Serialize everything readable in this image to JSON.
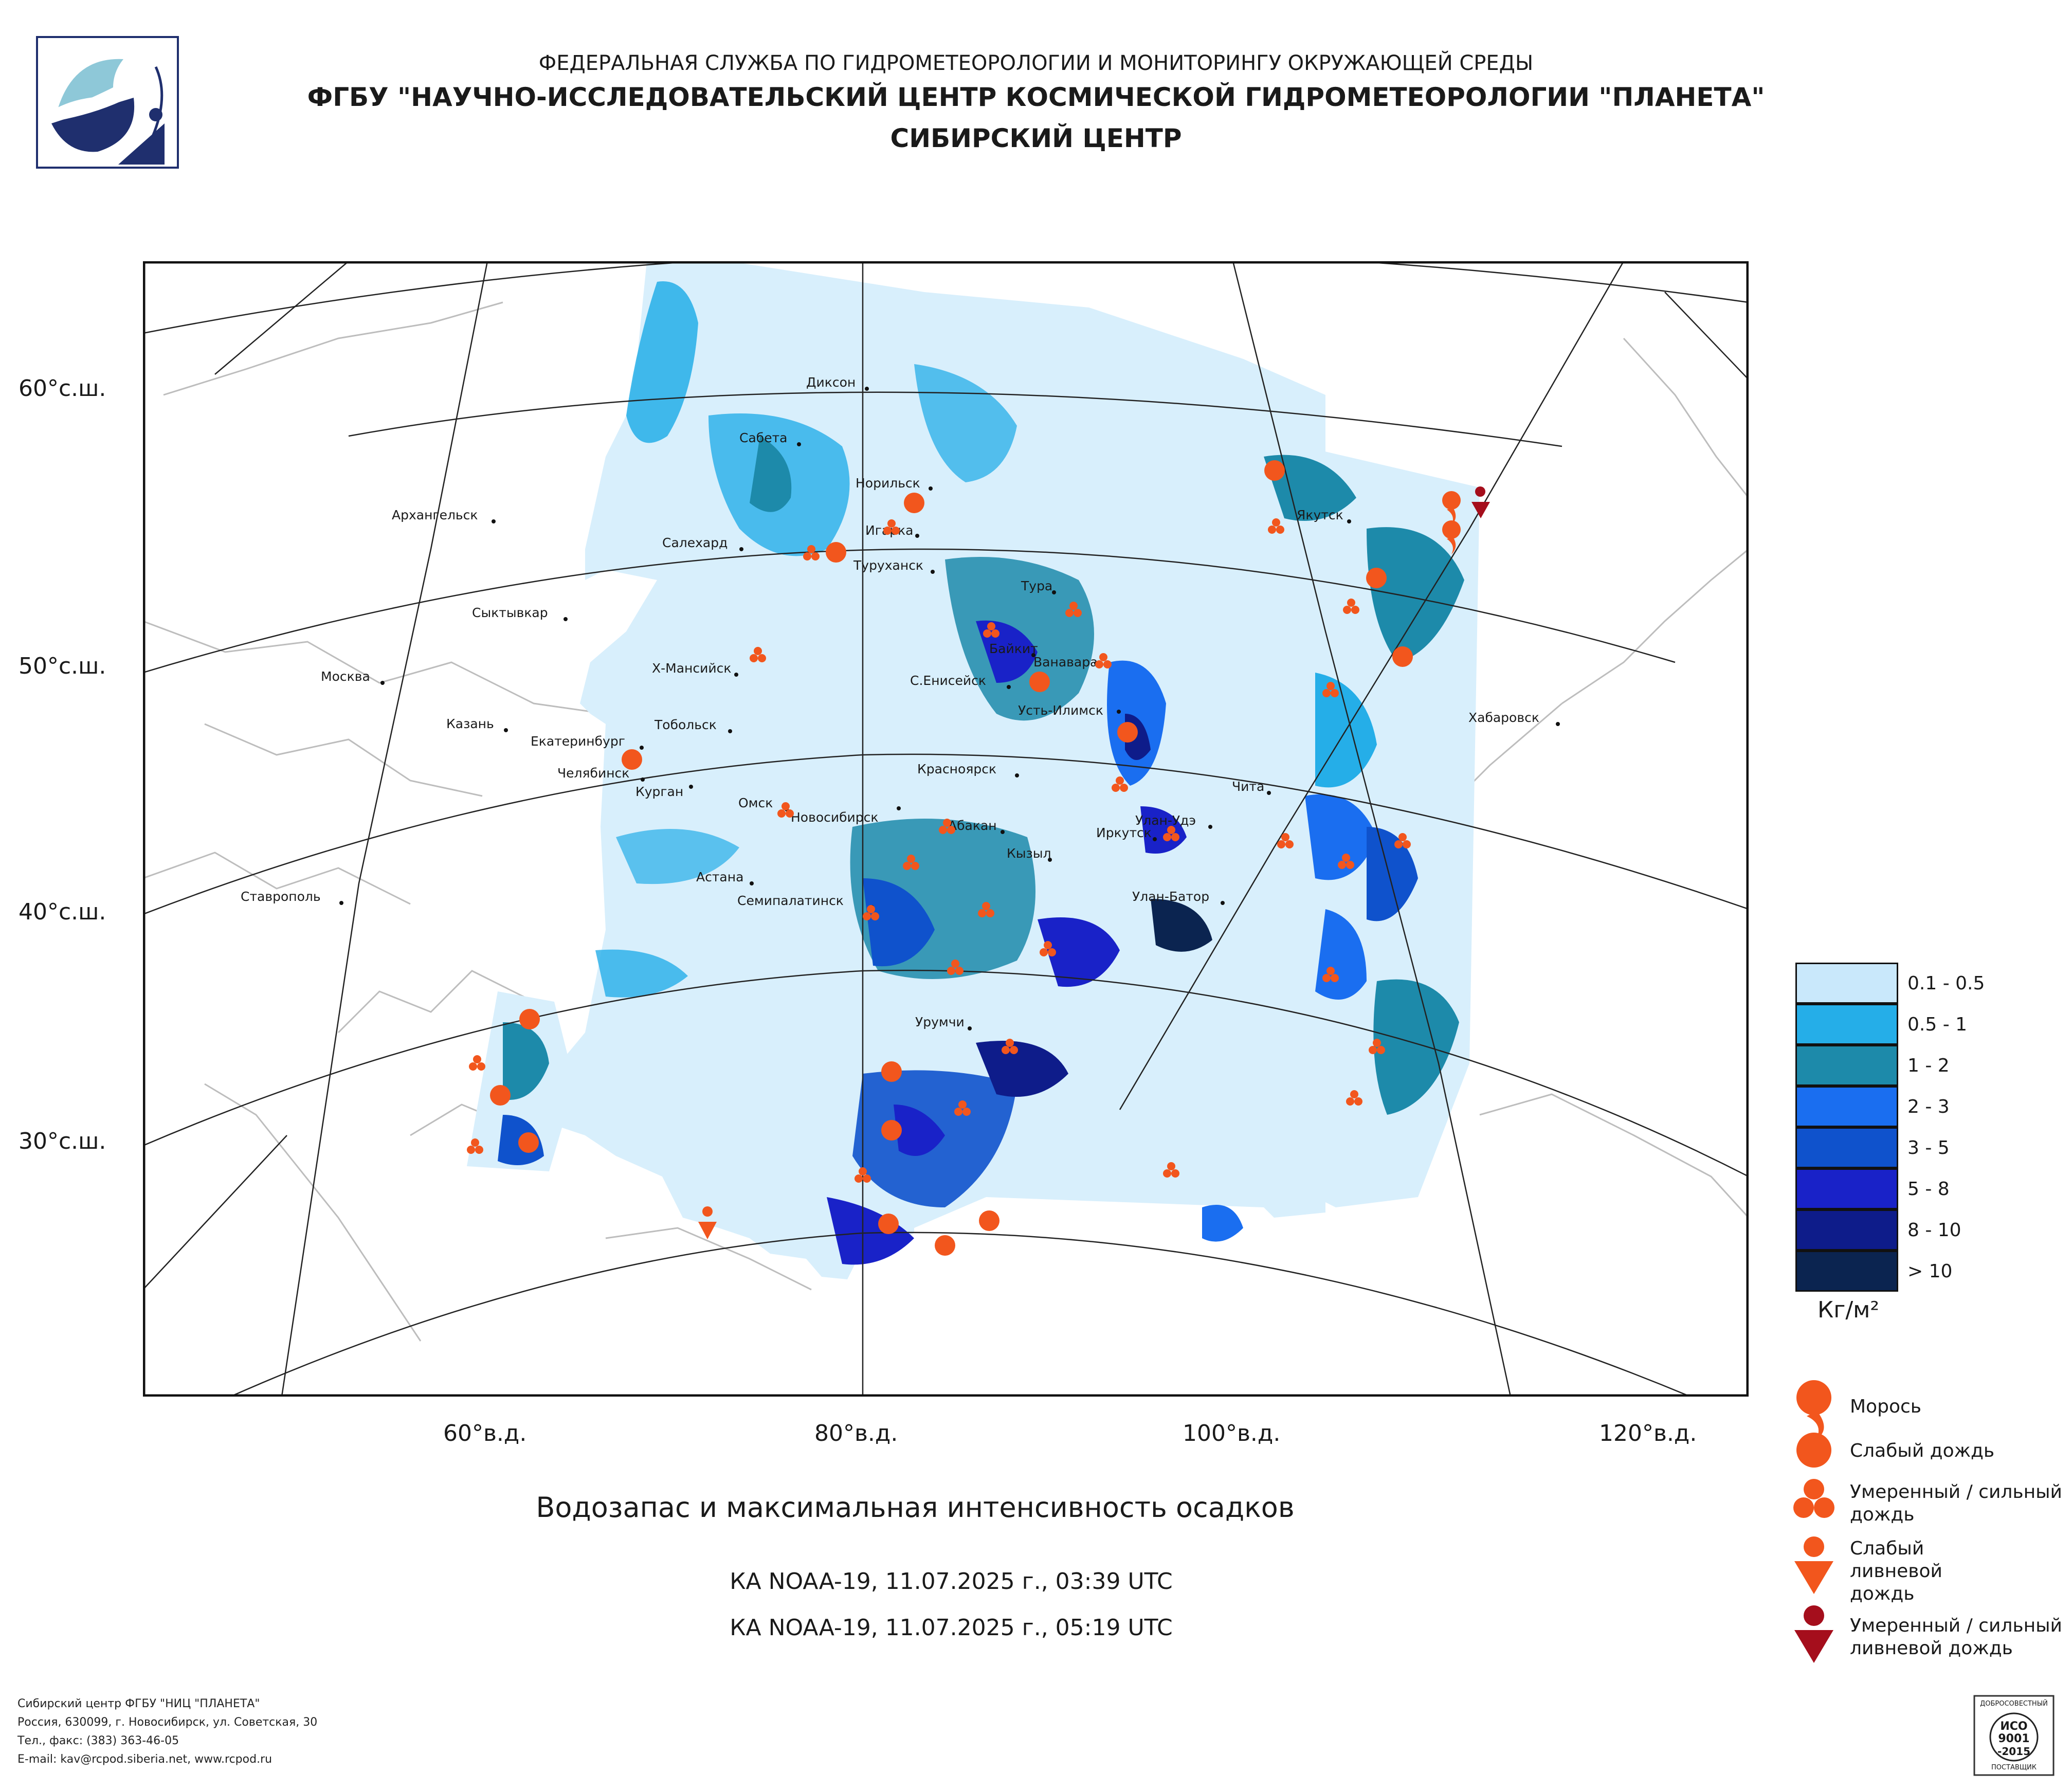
{
  "header": {
    "agency": "ФЕДЕРАЛЬНАЯ СЛУЖБА ПО ГИДРОМЕТЕОРОЛОГИИ И МОНИТОРИНГУ ОКРУЖАЮЩЕЙ СРЕДЫ",
    "org": "ФГБУ \"НАУЧНО-ИССЛЕДОВАТЕЛЬСКИЙ ЦЕНТР КОСМИЧЕСКОЙ ГИДРОМЕТЕОРОЛОГИИ \"ПЛАНЕТА\"",
    "center": "СИБИРСКИЙ ЦЕНТР",
    "logo_icon": "planeta-logo-icon"
  },
  "map": {
    "title": "Водозапас и максимальная интенсивность осадков",
    "passes": [
      "КА NOAA-19, 11.07.2025 г., 03:39 UTC",
      "КА NOAA-19, 11.07.2025 г., 05:19 UTC"
    ],
    "lat_labels": [
      "60°с.ш.",
      "50°с.ш.",
      "40°с.ш.",
      "30°с.ш."
    ],
    "lon_labels": [
      "60°в.д.",
      "80°в.д.",
      "100°в.д.",
      "120°в.д."
    ],
    "cities": [
      "Диксон",
      "Сабета",
      "Норильск",
      "Игарка",
      "Салехард",
      "Архангельск",
      "Туруханск",
      "Тура",
      "Сыктывкар",
      "Байкит",
      "Ванавара",
      "Х-Мансийск",
      "С.Енисейск",
      "Москва",
      "Усть-Илимск",
      "Казань",
      "Тобольск",
      "Екатеринбург",
      "Челябинск",
      "Курган",
      "Красноярск",
      "Омск",
      "Новосибирск",
      "Абакан",
      "Улан-Удэ",
      "Иркутск",
      "Кызыл",
      "Астана",
      "Семипалатинск",
      "Улан-Батор",
      "Ставрополь",
      "Урумчи",
      "Якутск",
      "Чита",
      "Хабаровск"
    ]
  },
  "legend": {
    "scale": [
      {
        "label": "0.1 - 0.5",
        "color": "#c9e8fb"
      },
      {
        "label": "0.5 - 1",
        "color": "#25aee8"
      },
      {
        "label": "1 - 2",
        "color": "#1d8aaa"
      },
      {
        "label": "2 - 3",
        "color": "#1a6ef0"
      },
      {
        "label": "3 - 5",
        "color": "#0f52cc"
      },
      {
        "label": "5 - 8",
        "color": "#1922c8"
      },
      {
        "label": "8 - 10",
        "color": "#0e1c8a"
      },
      {
        "label": "> 10",
        "color": "#0b2450"
      }
    ],
    "unit": "Кг/м²",
    "symbols": [
      {
        "label": "Морось",
        "icon": "drizzle-icon",
        "color": "#f2561d"
      },
      {
        "label": "Слабый дождь",
        "icon": "light-rain-icon",
        "color": "#f2561d"
      },
      {
        "label": "Умеренный / сильный дождь",
        "icon": "moderate-rain-icon",
        "color": "#f2561d"
      },
      {
        "label": "Слабый ливневой дождь",
        "icon": "light-shower-icon",
        "color": "#f2561d"
      },
      {
        "label": "Умеренный / сильный ливневой дождь",
        "icon": "heavy-shower-icon",
        "color": "#a50e1c"
      }
    ]
  },
  "footer": {
    "lines": [
      "Сибирский центр ФГБУ \"НИЦ \"ПЛАНЕТА\"",
      "Россия, 630099, г. Новосибирск, ул. Советская, 30",
      "Тел., факс: (383) 363-46-05",
      "E-mail: kav@rcpod.siberia.net, www.rcpod.ru"
    ],
    "iso_badge": {
      "top": "ДОБРОСОВЕСТНЫЙ",
      "line1": "ИСО",
      "line2": "9001",
      "line3": "-2015",
      "bottom": "ПОСТАВЩИК"
    }
  }
}
